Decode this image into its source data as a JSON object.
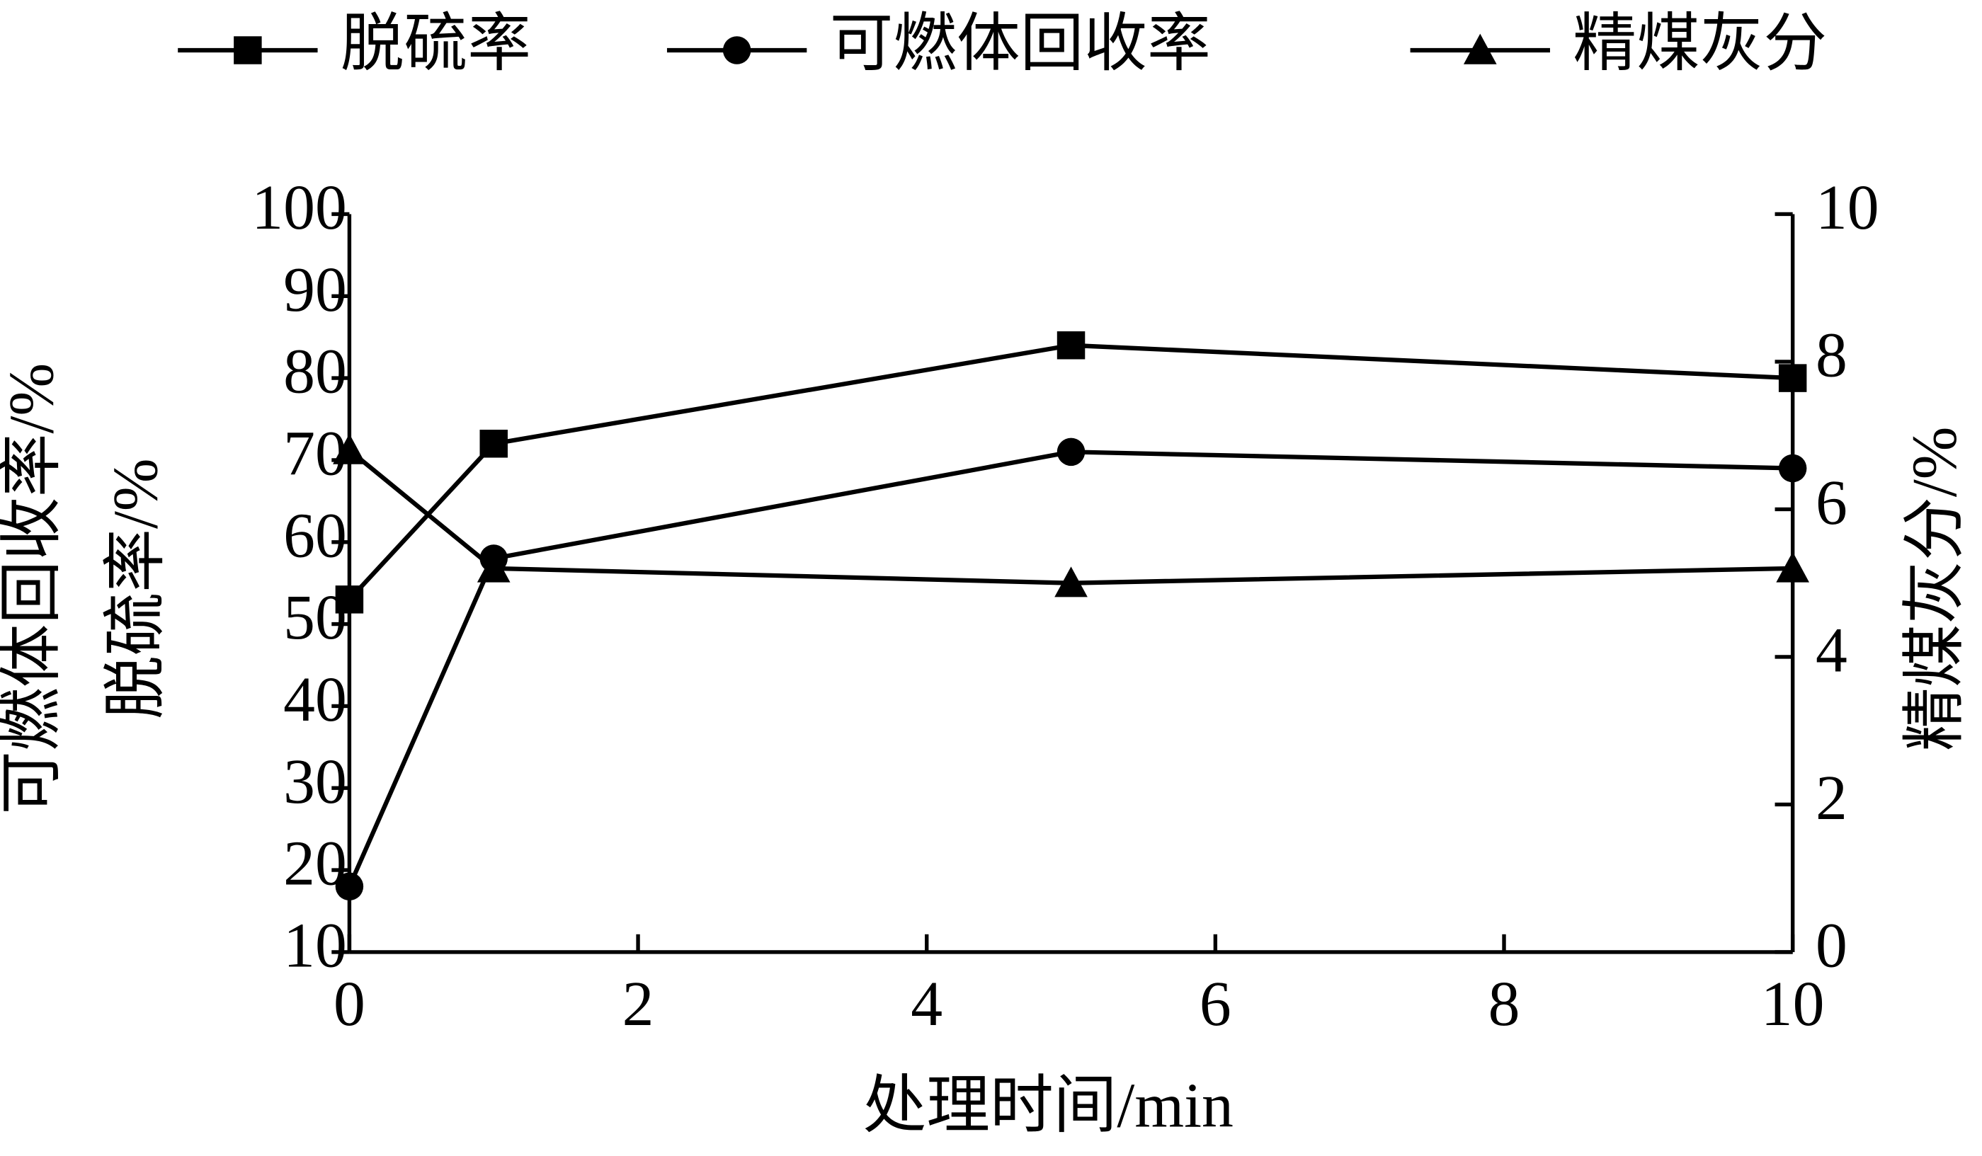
{
  "chart_data": {
    "type": "line",
    "x": [
      0,
      1,
      5,
      10
    ],
    "xlabel": "处理时间/min",
    "ylabel": [
      "可燃体回收率/%",
      "脱硫率/%"
    ],
    "y2label": "精煤灰分/%",
    "xlim": [
      0,
      10
    ],
    "xticks": [
      0,
      2,
      4,
      6,
      8,
      10
    ],
    "ylim": [
      10,
      100
    ],
    "yticks": [
      10,
      20,
      30,
      40,
      50,
      60,
      70,
      80,
      90,
      100
    ],
    "y2lim": [
      0,
      10
    ],
    "y2ticks": [
      0,
      2,
      4,
      6,
      8,
      10
    ],
    "legend": "top",
    "series": [
      {
        "name": "脱硫率",
        "color": "#000000",
        "marker": "square",
        "values": [
          53,
          72,
          84,
          80
        ]
      },
      {
        "name": "可燃体回收率",
        "color": "#000000",
        "marker": "circle",
        "values": [
          18,
          58,
          71,
          69
        ]
      },
      {
        "name": "精煤灰分",
        "color": "#000000",
        "marker": "triangle",
        "axis": "y2",
        "values": [
          6.8,
          5.2,
          5.0,
          5.2
        ]
      }
    ]
  }
}
